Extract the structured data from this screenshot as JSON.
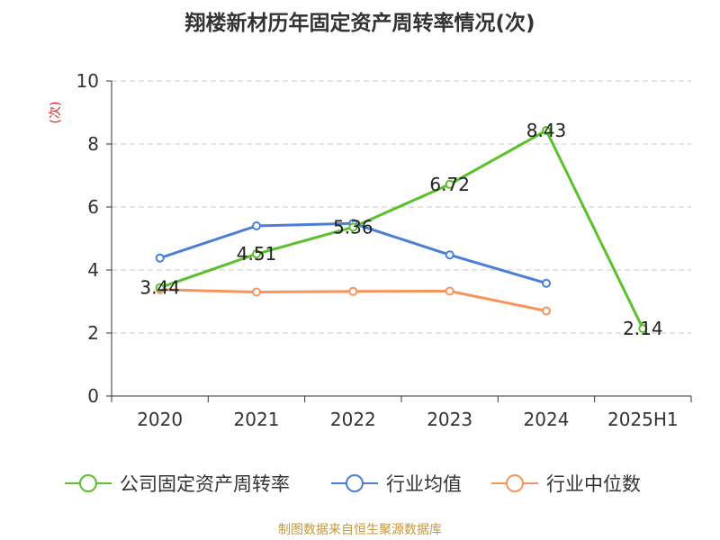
{
  "title": "翔楼新材历年固定资产周转率情况(次)",
  "source": "制图数据来自恒生聚源数据库",
  "chart_data": {
    "type": "line",
    "title": "翔楼新材历年固定资产周转率情况(次)",
    "ylabel": "(次)",
    "xlabel": "",
    "categories": [
      "2020",
      "2021",
      "2022",
      "2023",
      "2024",
      "2025H1"
    ],
    "ylim": [
      0,
      10
    ],
    "yticks": [
      0,
      2,
      4,
      6,
      8,
      10
    ],
    "grid": true,
    "legend_position": "bottom",
    "series": [
      {
        "name": "公司固定资产周转率",
        "color": "#5ac12d",
        "values": [
          3.44,
          4.51,
          5.36,
          6.72,
          8.43,
          2.14
        ],
        "labels": [
          "3.44",
          "4.51",
          "5.36",
          "6.72",
          "8.43",
          "2.14"
        ]
      },
      {
        "name": "行业均值",
        "color": "#4a7fd6",
        "values": [
          4.38,
          5.4,
          5.48,
          4.48,
          3.58,
          null
        ]
      },
      {
        "name": "行业中位数",
        "color": "#f7935b",
        "values": [
          3.38,
          3.3,
          3.32,
          3.33,
          2.7,
          null
        ]
      }
    ]
  }
}
